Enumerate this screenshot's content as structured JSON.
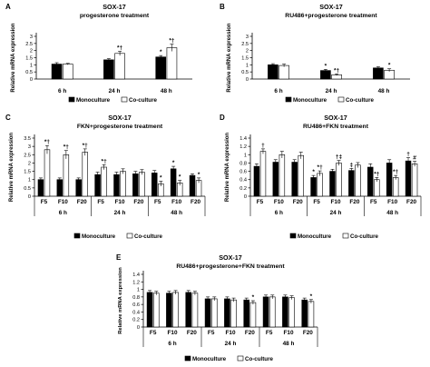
{
  "figure_width": 474,
  "figure_height": 404,
  "colors": {
    "monoculture": "#000000",
    "coculture": "#ffffff",
    "axis": "#000000"
  },
  "legend": {
    "monoculture": "Monoculture",
    "coculture": "Co-culture"
  },
  "chart_data": [
    {
      "panel": "A",
      "type": "bar",
      "title": "SOX-17",
      "subtitle": "progesterone treatment",
      "ylabel": "Relative mRNA expression",
      "ylim": [
        0,
        3
      ],
      "yticks": [
        "0",
        "0.5",
        "1",
        "1.5",
        "2",
        "2.5",
        "3"
      ],
      "categories": [
        "6 h",
        "24 h",
        "48 h"
      ],
      "series": [
        {
          "name": "Monoculture",
          "values": [
            1.05,
            1.35,
            1.55
          ],
          "errors": [
            0.1,
            0.08,
            0.1
          ],
          "marks": [
            "",
            "",
            "*"
          ]
        },
        {
          "name": "Co-culture",
          "values": [
            1.05,
            1.8,
            2.2
          ],
          "errors": [
            0.05,
            0.15,
            0.25
          ],
          "marks": [
            "",
            "*†",
            "*†"
          ]
        }
      ]
    },
    {
      "panel": "B",
      "type": "bar",
      "title": "SOX-17",
      "subtitle": "RU486+progesterone treatment",
      "ylabel": "Relative mRNA expression",
      "ylim": [
        0,
        3
      ],
      "yticks": [
        "0",
        "0.5",
        "1",
        "1.5",
        "2",
        "2.5",
        "3"
      ],
      "categories": [
        "6 h",
        "24 h",
        "48 h"
      ],
      "series": [
        {
          "name": "Monoculture",
          "values": [
            1.0,
            0.6,
            0.78
          ],
          "errors": [
            0.08,
            0.08,
            0.08
          ],
          "marks": [
            "",
            "*",
            ""
          ]
        },
        {
          "name": "Co-culture",
          "values": [
            0.95,
            0.3,
            0.62
          ],
          "errors": [
            0.1,
            0.06,
            0.1
          ],
          "marks": [
            "",
            "*†",
            "*"
          ]
        }
      ]
    },
    {
      "panel": "C",
      "type": "bar",
      "title": "SOX-17",
      "subtitle": "FKN+progesterone treatment",
      "ylabel": "Relative mRNA expression",
      "ylim": [
        0,
        3.5
      ],
      "yticks": [
        "0",
        "0.5",
        "1",
        "1.5",
        "2",
        "2.5",
        "3",
        "3.5"
      ],
      "categories": [
        "F5",
        "F10",
        "F20",
        "F5",
        "F10",
        "F20",
        "F5",
        "F10",
        "F20"
      ],
      "groups": [
        "6 h",
        "24 h",
        "48 h"
      ],
      "series": [
        {
          "name": "Monoculture",
          "values": [
            1.0,
            1.0,
            1.0,
            1.3,
            1.3,
            1.35,
            1.4,
            1.65,
            1.25
          ],
          "errors": [
            0.1,
            0.1,
            0.1,
            0.15,
            0.15,
            0.15,
            0.15,
            0.15,
            0.1
          ],
          "marks": [
            "",
            "",
            "",
            "",
            "",
            "",
            "",
            "*",
            ""
          ]
        },
        {
          "name": "Co-culture",
          "values": [
            2.8,
            2.5,
            2.65,
            1.75,
            1.5,
            1.45,
            0.75,
            0.8,
            0.95
          ],
          "errors": [
            0.25,
            0.25,
            0.2,
            0.15,
            0.15,
            0.15,
            0.15,
            0.15,
            0.15
          ],
          "marks": [
            "*†",
            "*†",
            "*†",
            "*†",
            "",
            "",
            "*",
            "*",
            "*"
          ]
        }
      ]
    },
    {
      "panel": "D",
      "type": "bar",
      "title": "SOX-17",
      "subtitle": "RU486+FKN treatment",
      "ylabel": "Relative mRNA expression",
      "ylim": [
        0,
        1.4
      ],
      "yticks": [
        "0",
        "0.2",
        "0.4",
        "0.6",
        "0.8",
        "1",
        "1.2",
        "1.4"
      ],
      "categories": [
        "F5",
        "F10",
        "F20",
        "F5",
        "F10",
        "F20",
        "F5",
        "F10",
        "F20"
      ],
      "groups": [
        "6 h",
        "24 h",
        "48 h"
      ],
      "series": [
        {
          "name": "Monoculture",
          "values": [
            0.72,
            0.82,
            0.82,
            0.45,
            0.6,
            0.62,
            0.7,
            0.8,
            0.85
          ],
          "errors": [
            0.06,
            0.06,
            0.06,
            0.05,
            0.05,
            0.05,
            0.08,
            0.08,
            0.08
          ],
          "marks": [
            "",
            "",
            "",
            "*",
            "",
            "‡",
            "",
            "",
            "†"
          ]
        },
        {
          "name": "Co-culture",
          "values": [
            1.08,
            1.0,
            0.98,
            0.55,
            0.8,
            0.75,
            0.4,
            0.45,
            0.78
          ],
          "errors": [
            0.06,
            0.08,
            0.08,
            0.06,
            0.06,
            0.06,
            0.05,
            0.05,
            0.06
          ],
          "marks": [
            "†",
            "",
            "",
            "*†",
            "†‡",
            "",
            "*†",
            "*†",
            "#"
          ]
        }
      ]
    },
    {
      "panel": "E",
      "type": "bar",
      "title": "SOX-17",
      "subtitle": "RU486+progesterone+FKN treatment",
      "ylabel": "Relative mRNA expression",
      "ylim": [
        0,
        1.4
      ],
      "yticks": [
        "0",
        "0.2",
        "0.4",
        "0.6",
        "0.8",
        "1",
        "1.2",
        "1.4"
      ],
      "categories": [
        "F5",
        "F10",
        "F20",
        "F5",
        "F10",
        "F20",
        "F5",
        "F10",
        "F20"
      ],
      "groups": [
        "6 h",
        "24 h",
        "48 h"
      ],
      "series": [
        {
          "name": "Monoculture",
          "values": [
            0.92,
            0.9,
            0.92,
            0.75,
            0.75,
            0.72,
            0.8,
            0.8,
            0.72
          ],
          "errors": [
            0.05,
            0.05,
            0.05,
            0.05,
            0.05,
            0.05,
            0.05,
            0.05,
            0.05
          ],
          "marks": [
            "",
            "",
            "",
            "",
            "",
            "",
            "",
            "",
            ""
          ]
        },
        {
          "name": "Co-culture",
          "values": [
            0.9,
            0.92,
            0.9,
            0.75,
            0.72,
            0.65,
            0.8,
            0.78,
            0.68
          ],
          "errors": [
            0.05,
            0.05,
            0.05,
            0.05,
            0.05,
            0.05,
            0.05,
            0.05,
            0.05
          ],
          "marks": [
            "",
            "",
            "",
            "",
            "",
            "*",
            "",
            "",
            "*"
          ]
        }
      ]
    }
  ]
}
